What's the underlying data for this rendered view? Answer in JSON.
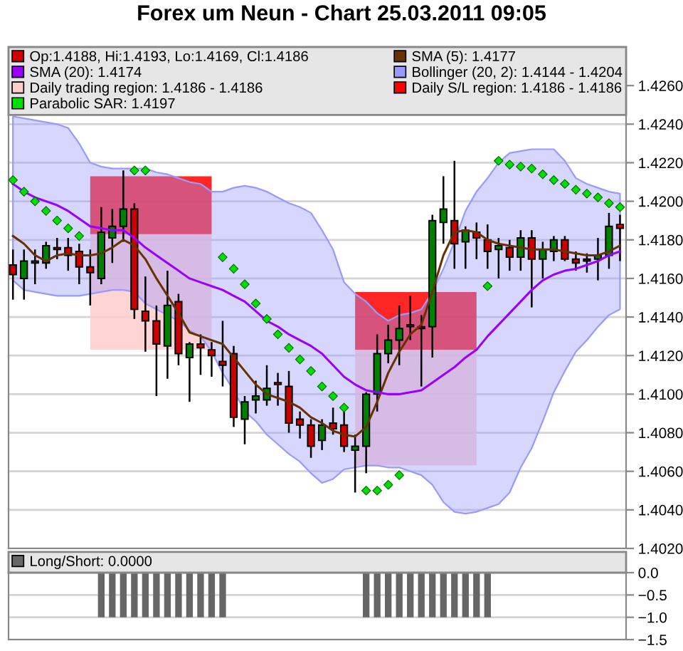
{
  "chart_data": [
    {
      "type": "candlestick",
      "title": "Forex um Neun - Chart 25.03.2011 09:05",
      "categories": [
        null,
        null,
        null,
        null,
        null,
        null,
        null,
        null,
        null,
        null,
        null,
        null,
        null,
        null,
        null,
        null,
        null,
        null,
        null,
        null,
        null,
        null,
        null,
        null,
        null,
        null,
        null,
        null,
        null,
        null,
        null,
        null,
        null,
        null,
        null,
        null,
        null,
        null,
        null,
        null,
        null,
        null,
        null,
        null,
        null,
        null,
        null,
        null,
        null,
        null,
        null,
        null,
        null,
        null,
        null,
        null
      ],
      "series": [
        {
          "type": "candlestick",
          "name": "Op:1.4188, Hi:1.4193, Lo:1.4169, Cl:1.4186",
          "color": "#cc0000",
          "ohlc": [
            [
              1.4167,
              1.4175,
              1.4149,
              1.4162
            ],
            [
              1.416,
              1.4175,
              1.4149,
              1.4169
            ],
            [
              1.4168,
              1.4175,
              1.4157,
              1.4169
            ],
            [
              1.4168,
              1.4179,
              1.4165,
              1.4177
            ],
            [
              1.4176,
              1.4181,
              1.417,
              1.4175
            ],
            [
              1.4176,
              1.4181,
              1.4164,
              1.4172
            ],
            [
              1.4174,
              1.4178,
              1.4157,
              1.4166
            ],
            [
              1.4166,
              1.4175,
              1.4146,
              1.4163
            ],
            [
              1.416,
              1.4197,
              1.4157,
              1.4184
            ],
            [
              1.4181,
              1.4196,
              1.4168,
              1.4187
            ],
            [
              1.4187,
              1.4216,
              1.4179,
              1.4196
            ],
            [
              1.4196,
              1.4199,
              1.4139,
              1.4144
            ],
            [
              1.4143,
              1.4161,
              1.4122,
              1.4138
            ],
            [
              1.4138,
              1.4146,
              1.4099,
              1.4126
            ],
            [
              1.4125,
              1.4164,
              1.4108,
              1.4146
            ],
            [
              1.4148,
              1.4152,
              1.4115,
              1.4121
            ],
            [
              1.4119,
              1.4127,
              1.4096,
              1.4126
            ],
            [
              1.4126,
              1.4131,
              1.411,
              1.4124
            ],
            [
              1.4123,
              1.4127,
              1.4109,
              1.412
            ],
            [
              1.4117,
              1.4138,
              1.4104,
              1.4115
            ],
            [
              1.4121,
              1.4125,
              1.4083,
              1.4088
            ],
            [
              1.4087,
              1.4099,
              1.4074,
              1.4096
            ],
            [
              1.4097,
              1.4107,
              1.409,
              1.4099
            ],
            [
              1.4097,
              1.4115,
              1.4094,
              1.4103
            ],
            [
              1.4106,
              1.4111,
              1.4094,
              1.4105
            ],
            [
              1.4104,
              1.4112,
              1.408,
              1.4085
            ],
            [
              1.4087,
              1.4091,
              1.4077,
              1.4084
            ],
            [
              1.4084,
              1.4087,
              1.4067,
              1.4073
            ],
            [
              1.4076,
              1.4087,
              1.4071,
              1.4084
            ],
            [
              1.4085,
              1.4093,
              1.4079,
              1.4082
            ],
            [
              1.4084,
              1.4091,
              1.407,
              1.4073
            ],
            [
              1.4071,
              1.4079,
              1.4049,
              1.4073
            ],
            [
              1.4073,
              1.4101,
              1.4059,
              1.41
            ],
            [
              1.41,
              1.4131,
              1.4091,
              1.4121
            ],
            [
              1.4121,
              1.4136,
              1.4116,
              1.4128
            ],
            [
              1.4128,
              1.4146,
              1.4115,
              1.4134
            ],
            [
              1.4136,
              1.4151,
              1.4128,
              1.4135
            ],
            [
              1.4135,
              1.4141,
              1.4104,
              1.4134
            ],
            [
              1.4135,
              1.4193,
              1.4119,
              1.419
            ],
            [
              1.4189,
              1.4213,
              1.4178,
              1.4196
            ],
            [
              1.419,
              1.4221,
              1.4165,
              1.4178
            ],
            [
              1.4179,
              1.4187,
              1.4165,
              1.4185
            ],
            [
              1.4184,
              1.4189,
              1.417,
              1.4181
            ],
            [
              1.418,
              1.4188,
              1.4165,
              1.4174
            ],
            [
              1.4175,
              1.4181,
              1.416,
              1.4177
            ],
            [
              1.4176,
              1.418,
              1.4164,
              1.4171
            ],
            [
              1.4171,
              1.4185,
              1.4164,
              1.4181
            ],
            [
              1.4181,
              1.4185,
              1.4145,
              1.417
            ],
            [
              1.417,
              1.4179,
              1.416,
              1.4175
            ],
            [
              1.4174,
              1.4182,
              1.4169,
              1.418
            ],
            [
              1.418,
              1.4182,
              1.4169,
              1.417
            ],
            [
              1.417,
              1.4174,
              1.4164,
              1.4168
            ],
            [
              1.417,
              1.4173,
              1.4163,
              1.4169
            ],
            [
              1.417,
              1.4181,
              1.4159,
              1.4172
            ],
            [
              1.4172,
              1.4194,
              1.4165,
              1.4187
            ],
            [
              1.4188,
              1.4193,
              1.4169,
              1.4186
            ]
          ],
          "colors": [
            "#cc0000",
            "#008000",
            "#008000",
            "#008000",
            "#cc0000",
            "#cc0000",
            "#cc0000",
            "#cc0000",
            "#008000",
            "#008000",
            "#008000",
            "#cc0000",
            "#cc0000",
            "#cc0000",
            "#008000",
            "#cc0000",
            "#008000",
            "#cc0000",
            "#cc0000",
            "#cc0000",
            "#cc0000",
            "#008000",
            "#008000",
            "#008000",
            "#cc0000",
            "#cc0000",
            "#cc0000",
            "#cc0000",
            "#008000",
            "#cc0000",
            "#cc0000",
            "#008000",
            "#008000",
            "#008000",
            "#008000",
            "#008000",
            "#cc0000",
            "#cc0000",
            "#008000",
            "#008000",
            "#cc0000",
            "#008000",
            "#cc0000",
            "#cc0000",
            "#008000",
            "#cc0000",
            "#008000",
            "#cc0000",
            "#008000",
            "#008000",
            "#cc0000",
            "#cc0000",
            "#cc0000",
            "#008000",
            "#008000",
            "#cc0000"
          ]
        },
        {
          "type": "line",
          "name": "SMA (5): 1.4177",
          "color": "#663300",
          "values": [
            1.4182,
            1.4178,
            1.4172,
            1.4169,
            1.4172,
            1.4173,
            1.4172,
            1.4172,
            1.4173,
            1.4176,
            1.418,
            1.4177,
            1.417,
            1.416,
            1.4151,
            1.4142,
            1.4132,
            1.413,
            1.4128,
            1.4126,
            1.4119,
            1.4112,
            1.4105,
            1.41,
            1.4098,
            1.4096,
            1.4093,
            1.4088,
            1.4085,
            1.4081,
            1.4079,
            1.4078,
            1.4083,
            1.4096,
            1.4111,
            1.4122,
            1.4131,
            1.4136,
            1.4153,
            1.4172,
            1.4184,
            1.4185,
            1.4184,
            1.418,
            1.4178,
            1.4177,
            1.4176,
            1.4175,
            1.4175,
            1.4175,
            1.4174,
            1.4173,
            1.4172,
            1.4172,
            1.4174,
            1.4177
          ]
        },
        {
          "type": "line",
          "name": "SMA (20): 1.4174",
          "color": "#9900ff",
          "values": [
            1.4209,
            1.4205,
            1.4202,
            1.42,
            1.4198,
            1.4195,
            1.4191,
            1.4187,
            1.4186,
            1.4185,
            1.4185,
            1.4181,
            1.4176,
            1.4172,
            1.4168,
            1.4164,
            1.416,
            1.4158,
            1.4156,
            1.4154,
            1.4151,
            1.4148,
            1.4143,
            1.4138,
            1.4135,
            1.4131,
            1.4128,
            1.4125,
            1.4121,
            1.4115,
            1.4109,
            1.4105,
            1.4102,
            1.4101,
            1.41,
            1.41,
            1.4101,
            1.4102,
            1.4106,
            1.411,
            1.4114,
            1.4119,
            1.4123,
            1.413,
            1.4136,
            1.4142,
            1.4148,
            1.4154,
            1.4159,
            1.4162,
            1.4164,
            1.4165,
            1.4167,
            1.4169,
            1.4172,
            1.4174
          ]
        },
        {
          "type": "line",
          "name": "Bollinger (20, 2): 1.4144 - 1.4204",
          "color": "#9999ff",
          "values": [
            null,
            null,
            null,
            null,
            null,
            null,
            null,
            null,
            null,
            null,
            null,
            null,
            null,
            null,
            null,
            null,
            null,
            null,
            null,
            null,
            null,
            null,
            null,
            null,
            null,
            null,
            null,
            null,
            null,
            null,
            null,
            null,
            null,
            null,
            null,
            null,
            null,
            null,
            null,
            null,
            null,
            null,
            null,
            null,
            null,
            null,
            null,
            null,
            null,
            null,
            null,
            null,
            null,
            null,
            null,
            null
          ],
          "upper": [
            1.4244,
            1.4243,
            1.4242,
            1.4241,
            1.424,
            1.4238,
            1.423,
            1.422,
            1.4218,
            1.4217,
            1.4217,
            1.4217,
            1.4217,
            1.4215,
            1.4214,
            1.4212,
            1.421,
            1.4209,
            1.4205,
            1.4205,
            1.4207,
            1.4208,
            1.4207,
            1.4205,
            1.4202,
            1.4199,
            1.4197,
            1.4194,
            1.4185,
            1.4175,
            1.4158,
            1.4152,
            1.4148,
            1.4142,
            1.4138,
            1.4141,
            1.4142,
            1.4144,
            1.4153,
            1.4165,
            1.4179,
            1.4195,
            1.4205,
            1.4212,
            1.422,
            1.4225,
            1.4226,
            1.4227,
            1.4227,
            1.4227,
            1.4221,
            1.4212,
            1.4209,
            1.4207,
            1.4205,
            1.4204
          ],
          "lower": [
            1.4159,
            1.4154,
            1.4153,
            1.4152,
            1.4151,
            1.4151,
            1.4151,
            1.4152,
            1.4153,
            1.4154,
            1.4154,
            1.4153,
            1.4147,
            1.4144,
            1.4141,
            1.4138,
            1.4133,
            1.413,
            1.4122,
            1.4111,
            1.4102,
            1.4091,
            1.4086,
            1.4079,
            1.4074,
            1.4069,
            1.4065,
            1.4059,
            1.4054,
            1.4056,
            1.4061,
            1.4062,
            1.4063,
            1.4063,
            1.4062,
            1.4062,
            1.406,
            1.4058,
            1.4053,
            1.4044,
            1.4039,
            1.4038,
            1.4039,
            1.4041,
            1.4043,
            1.4049,
            1.4062,
            1.4072,
            1.4086,
            1.4101,
            1.4112,
            1.4122,
            1.4128,
            1.4135,
            1.4141,
            1.4144
          ]
        },
        {
          "type": "line",
          "name": "Daily trading region: 1.4186 - 1.4186",
          "color": "#ffcccc",
          "values": [
            null,
            null,
            null,
            null,
            null,
            null,
            null,
            null,
            null,
            null,
            null,
            null,
            null,
            null,
            null,
            null,
            null,
            null,
            null,
            null,
            null,
            null,
            null,
            null,
            null,
            null,
            null,
            null,
            null,
            null,
            null,
            null,
            null,
            null,
            null,
            null,
            null,
            null,
            null,
            null,
            null,
            null,
            null,
            null,
            null,
            null,
            null,
            null,
            null,
            null,
            null,
            null,
            null,
            null,
            null,
            null
          ],
          "upper": [
            null,
            null,
            null,
            null,
            null,
            null,
            null,
            1.4183,
            1.4183,
            1.4183,
            1.4183,
            1.4183,
            1.4183,
            1.4183,
            1.4183,
            1.4183,
            1.4183,
            1.4183,
            1.4183,
            null,
            null,
            null,
            null,
            null,
            null,
            null,
            null,
            null,
            null,
            null,
            null,
            1.4123,
            1.4123,
            1.4123,
            1.4123,
            1.4123,
            1.4123,
            1.4123,
            1.4123,
            1.4123,
            1.4123,
            1.4123,
            1.4123,
            null,
            null,
            null,
            null,
            null,
            null,
            null,
            null,
            null,
            null,
            null,
            null,
            null
          ],
          "lower": [
            null,
            null,
            null,
            null,
            null,
            null,
            null,
            1.4123,
            1.4123,
            1.4123,
            1.4123,
            1.4123,
            1.4123,
            1.4123,
            1.4123,
            1.4123,
            1.4123,
            1.4123,
            1.4123,
            null,
            null,
            null,
            null,
            null,
            null,
            null,
            null,
            null,
            null,
            null,
            null,
            1.4063,
            1.4063,
            1.4063,
            1.4063,
            1.4063,
            1.4063,
            1.4063,
            1.4063,
            1.4063,
            1.4063,
            1.4063,
            1.4063,
            null,
            null,
            null,
            null,
            null,
            null,
            null,
            null,
            null,
            null,
            null,
            null,
            null
          ]
        },
        {
          "type": "line",
          "name": "Daily S/L region: 1.4186 - 1.4186",
          "color": "#ff0000",
          "values": [
            null,
            null,
            null,
            null,
            null,
            null,
            null,
            null,
            null,
            null,
            null,
            null,
            null,
            null,
            null,
            null,
            null,
            null,
            null,
            null,
            null,
            null,
            null,
            null,
            null,
            null,
            null,
            null,
            null,
            null,
            null,
            null,
            null,
            null,
            null,
            null,
            null,
            null,
            null,
            null,
            null,
            null,
            null,
            null,
            null,
            null,
            null,
            null,
            null,
            null,
            null,
            null,
            null,
            null,
            null,
            null
          ],
          "upper": [
            null,
            null,
            null,
            null,
            null,
            null,
            null,
            1.4213,
            1.4213,
            1.4213,
            1.4213,
            1.4213,
            1.4213,
            1.4213,
            1.4213,
            1.4213,
            1.4213,
            1.4213,
            1.4213,
            null,
            null,
            null,
            null,
            null,
            null,
            null,
            null,
            null,
            null,
            null,
            null,
            1.4153,
            1.4153,
            1.4153,
            1.4153,
            1.4153,
            1.4153,
            1.4153,
            1.4153,
            1.4153,
            1.4153,
            1.4153,
            1.4153,
            null,
            null,
            null,
            null,
            null,
            null,
            null,
            null,
            null,
            null,
            null,
            null,
            null
          ],
          "lower": [
            null,
            null,
            null,
            null,
            null,
            null,
            null,
            1.4183,
            1.4183,
            1.4183,
            1.4183,
            1.4183,
            1.4183,
            1.4183,
            1.4183,
            1.4183,
            1.4183,
            1.4183,
            1.4183,
            null,
            null,
            null,
            null,
            null,
            null,
            null,
            null,
            null,
            null,
            null,
            null,
            1.4123,
            1.4123,
            1.4123,
            1.4123,
            1.4123,
            1.4123,
            1.4123,
            1.4123,
            1.4123,
            1.4123,
            1.4123,
            1.4123,
            null,
            null,
            null,
            null,
            null,
            null,
            null,
            null,
            null,
            null,
            null,
            null,
            null
          ]
        },
        {
          "type": "scatter",
          "name": "Parabolic SAR: 1.4197",
          "color": "#00dd00",
          "marker": "diamond",
          "values": [
            1.4211,
            1.4205,
            1.42,
            1.4195,
            1.419,
            1.4186,
            1.4182,
            null,
            null,
            null,
            null,
            1.4216,
            1.4216,
            null,
            null,
            null,
            null,
            null,
            null,
            1.4171,
            1.4165,
            1.4157,
            1.4147,
            1.4139,
            1.4131,
            1.4124,
            1.4118,
            1.4112,
            1.4104,
            1.4099,
            1.4093,
            null,
            1.405,
            1.405,
            1.4053,
            1.4058,
            null,
            null,
            null,
            null,
            null,
            null,
            null,
            1.4156,
            1.4221,
            1.4219,
            1.4218,
            1.4217,
            1.4214,
            1.4211,
            1.4209,
            1.4206,
            1.4204,
            1.4202,
            1.4199,
            1.4197
          ]
        }
      ],
      "ylim": [
        1.402,
        1.428
      ],
      "yticks": [
        {
          "value": 1.402,
          "label": "1.4020"
        },
        {
          "value": 1.404,
          "label": "1.4040"
        },
        {
          "value": 1.406,
          "label": "1.4060"
        },
        {
          "value": 1.408,
          "label": "1.4080"
        },
        {
          "value": 1.41,
          "label": "1.4100"
        },
        {
          "value": 1.412,
          "label": "1.4120"
        },
        {
          "value": 1.414,
          "label": "1.4140"
        },
        {
          "value": 1.416,
          "label": "1.4160"
        },
        {
          "value": 1.418,
          "label": "1.4180"
        },
        {
          "value": 1.42,
          "label": "1.4200"
        },
        {
          "value": 1.422,
          "label": "1.4220"
        },
        {
          "value": 1.424,
          "label": "1.4240"
        },
        {
          "value": 1.426,
          "label": "1.4260"
        }
      ],
      "grid": "y",
      "legend": "top",
      "tick_labels": "y"
    },
    {
      "type": "bar",
      "categories": [
        null,
        null,
        null,
        null,
        null,
        null,
        null,
        null,
        null,
        null,
        null,
        null,
        null,
        null,
        null,
        null,
        null,
        null,
        null,
        null,
        null,
        null,
        null,
        null,
        null,
        null,
        null,
        null,
        null,
        null,
        null,
        null,
        null,
        null,
        null,
        null,
        null,
        null,
        null,
        null,
        null,
        null,
        null,
        null,
        null,
        null,
        null,
        null,
        null,
        null,
        null,
        null,
        null,
        null,
        null,
        null
      ],
      "series": [
        {
          "name": "Long/Short: 0.0000",
          "color": "#666666",
          "values": [
            null,
            null,
            null,
            null,
            null,
            null,
            null,
            null,
            -1,
            -1,
            -1,
            -1,
            -1,
            -1,
            -1,
            -1,
            -1,
            -1,
            -1,
            -1,
            null,
            null,
            null,
            null,
            null,
            null,
            null,
            null,
            null,
            null,
            null,
            null,
            -1,
            -1,
            -1,
            -1,
            -1,
            -1,
            -1,
            -1,
            -1,
            -1,
            -1,
            -1,
            null,
            null,
            null,
            null,
            null,
            null,
            null,
            null,
            null,
            null,
            null,
            null
          ]
        }
      ],
      "ylim": [
        -1.5,
        0.0
      ],
      "yticks": [
        {
          "value": 0.0,
          "label": "0.0"
        },
        {
          "value": -0.5,
          "label": "−0.5"
        },
        {
          "value": -1.0,
          "label": "−1.0"
        },
        {
          "value": -1.5,
          "label": "−1.5"
        }
      ],
      "grid": "y",
      "legend": "top",
      "tick_labels": "y"
    }
  ]
}
